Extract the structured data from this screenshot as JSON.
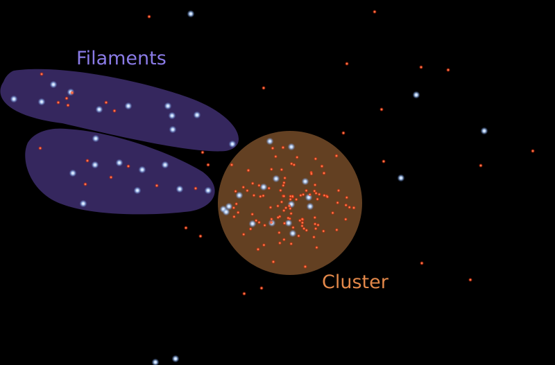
{
  "labels": {
    "filaments": "Filaments",
    "cluster": "Cluster"
  },
  "colors": {
    "background": "#000000",
    "filament_region": "#3a2a66",
    "filament_label": "#8a7be6",
    "cluster_region": "#6b4525",
    "cluster_label": "#e3884a",
    "blue_star": "#bcd8ff",
    "red_star": "#ff4a1f"
  },
  "icons": {
    "blue_star": "blue-glowing-dot",
    "red_star": "red-glowing-dot"
  }
}
